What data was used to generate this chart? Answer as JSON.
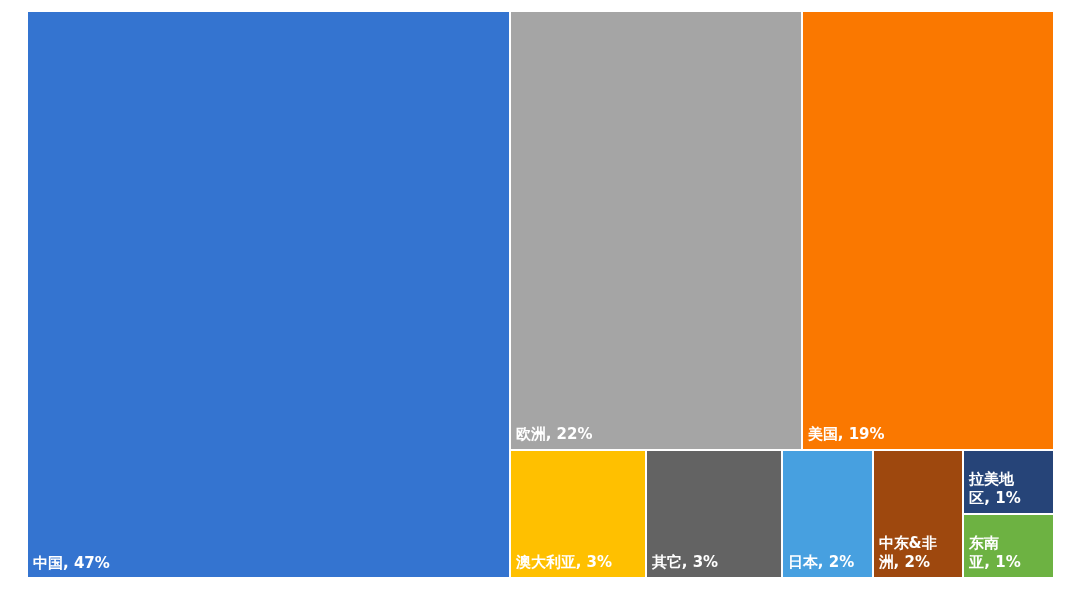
{
  "chart_data": {
    "type": "other",
    "categories": [
      "中国",
      "欧洲",
      "美国",
      "澳大利亚",
      "其它",
      "日本",
      "中东&非洲",
      "拉美地区",
      "东南亚"
    ],
    "values": [
      47,
      22,
      19,
      3,
      3,
      2,
      2,
      1,
      1
    ],
    "value_labels": [
      ", 47%",
      ", 22%",
      ", 19%",
      ", 3%",
      ", 3%",
      ", 2%",
      ", 2%",
      ", 1%",
      ", 1%"
    ],
    "colors": [
      "#3474d0",
      "#a5a5a5",
      "#fa7800",
      "#ffc000",
      "#636363",
      "#47a0e0",
      "#9e480e",
      "#264478",
      "#6db242"
    ]
  }
}
